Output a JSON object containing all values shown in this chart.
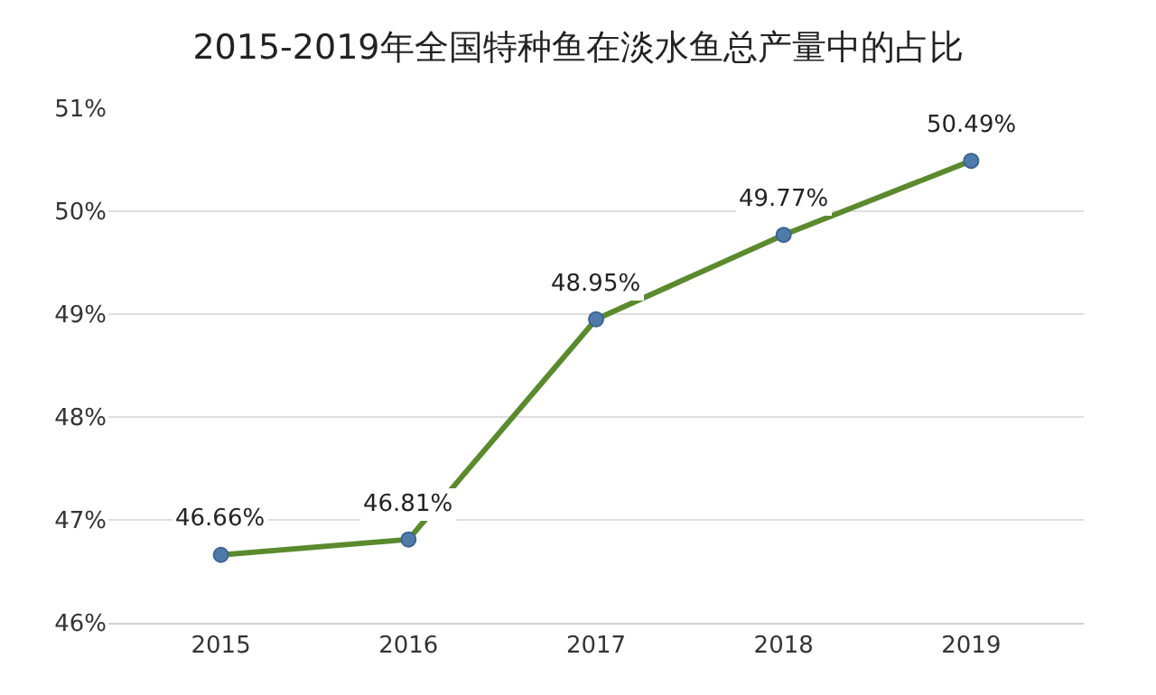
{
  "chart_data": {
    "type": "line",
    "title": "2015-2019年全国特种鱼在淡水鱼总产量中的占比",
    "categories": [
      "2015",
      "2016",
      "2017",
      "2018",
      "2019"
    ],
    "series": [
      {
        "color": "#5b8a2e",
        "values": [
          46.66,
          46.81,
          48.95,
          49.77,
          50.49
        ],
        "value_labels": [
          "46.66%",
          "46.81%",
          "48.95%",
          "49.77%",
          "50.49%"
        ]
      }
    ],
    "ylim": [
      46,
      51
    ],
    "yticks": [
      {
        "value": 46,
        "label": "46%"
      },
      {
        "value": 47,
        "label": "47%"
      },
      {
        "value": 48,
        "label": "48%"
      },
      {
        "value": 49,
        "label": "49%"
      },
      {
        "value": 50,
        "label": "50%"
      },
      {
        "value": 51,
        "label": "51%"
      }
    ],
    "grid": "y",
    "marker": "circle",
    "line_style": "solid"
  }
}
